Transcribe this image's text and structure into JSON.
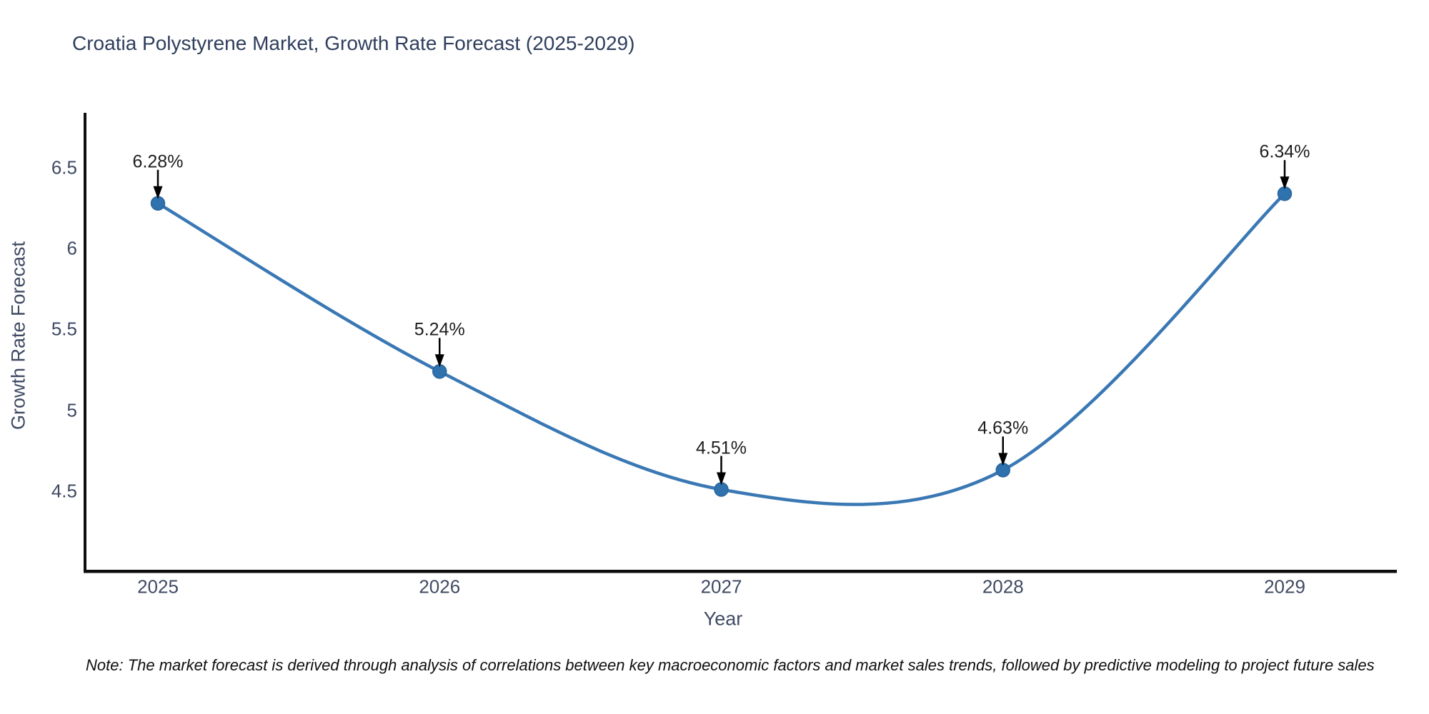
{
  "note": "Note: The market forecast is derived through analysis of correlations between key macroeconomic factors and market sales trends, followed by predictive modeling to project future sales",
  "chart_data": {
    "type": "line",
    "title": "Croatia Polystyrene Market, Growth Rate Forecast (2025-2029)",
    "x": [
      2025,
      2026,
      2027,
      2028,
      2029
    ],
    "xtick_labels": [
      "2025",
      "2026",
      "2027",
      "2028",
      "2029"
    ],
    "series": [
      {
        "name": "Growth Rate Forecast",
        "values": [
          6.28,
          5.24,
          4.51,
          4.63,
          6.34
        ]
      }
    ],
    "point_labels": [
      "6.28%",
      "5.24%",
      "4.51%",
      "4.63%",
      "6.34%"
    ],
    "xlabel": "Year",
    "ylabel": "Growth Rate Forecast",
    "yticks": [
      6.5,
      6.0,
      5.5,
      5.0,
      4.5
    ],
    "ytick_labels": [
      "6.5",
      "6",
      "5.5",
      "5",
      "4.5"
    ],
    "ylim": [
      4.0,
      6.85
    ],
    "xlim": [
      2024.74,
      2029.4
    ],
    "grid": false,
    "legend": "none",
    "line_shape": "spline",
    "annotation_style": "value label above point with downward black arrow",
    "colors": {
      "line": "#3a78b4",
      "marker": "#2f72ae",
      "marker_edge": "#2a669d",
      "spine": "#0e0e0e",
      "arrow": "#000000",
      "tick_text": "#3f4a63",
      "annotation_text": "#1e1e1e",
      "title_text": "#2f3e5c",
      "note_text": "#0f0f0f"
    }
  }
}
